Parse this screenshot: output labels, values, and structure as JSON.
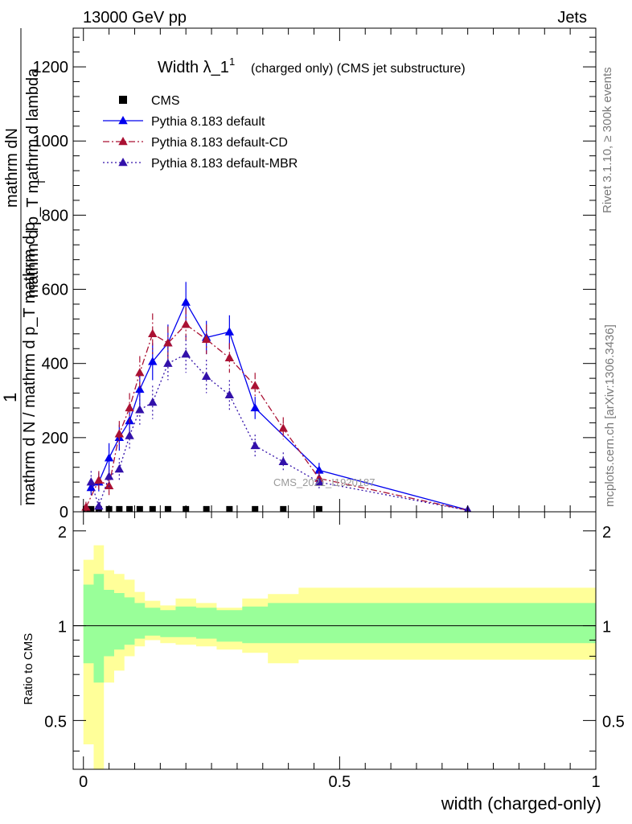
{
  "header": {
    "left": "13000 GeV pp",
    "right": "Jets"
  },
  "side_labels": {
    "rivet": "Rivet 3.1.10, ≥ 300k events",
    "mcplots": "mcplots.cern.ch [arXiv:1306.3436]"
  },
  "chart_data": [
    {
      "type": "line",
      "title": "Width λ_1",
      "title_sup": "1",
      "subtitle": "(charged only) (CMS jet substructure)",
      "ylabel_numerator": "1",
      "ylabel_line1": "mathrm dN",
      "ylabel_line2": "mathrm d p_T mathrm d lambda",
      "ylabel_sub_T": "T",
      "ylabel_denominator": "mathrm d N / mathrm d p_T mathrm d p",
      "watermark": "CMS_2021_I1920187",
      "xlim": [
        -0.02,
        1.0
      ],
      "ylim": [
        0,
        1300
      ],
      "yticks": [
        0,
        200,
        400,
        600,
        800,
        1000,
        1200
      ],
      "ytick_labels": [
        "0",
        "200",
        "400",
        "600",
        "800",
        "1000",
        "1200"
      ],
      "legend_position": "top-left",
      "series": [
        {
          "name": "CMS",
          "style": "markers",
          "color": "#000000",
          "x": [
            0.005,
            0.015,
            0.03,
            0.05,
            0.07,
            0.09,
            0.11,
            0.135,
            0.165,
            0.2,
            0.24,
            0.285,
            0.335,
            0.39,
            0.46
          ],
          "y": [
            0.3,
            0.3,
            0.3,
            0.3,
            0.3,
            0.3,
            0.3,
            0.3,
            0.3,
            0.3,
            0.3,
            0.3,
            0.3,
            0.3,
            0.3
          ],
          "err": [
            0,
            0,
            0,
            0,
            0,
            0,
            0,
            0,
            0,
            0,
            0,
            0,
            0,
            0,
            0
          ]
        },
        {
          "name": "Pythia 8.183 default",
          "style": "solid",
          "color": "#0000ee",
          "x": [
            0.015,
            0.03,
            0.05,
            0.07,
            0.09,
            0.11,
            0.135,
            0.165,
            0.2,
            0.24,
            0.285,
            0.335,
            0.46,
            0.75
          ],
          "y": [
            65,
            80,
            145,
            200,
            245,
            330,
            405,
            455,
            565,
            470,
            485,
            280,
            112,
            5
          ],
          "err": [
            20,
            25,
            40,
            35,
            40,
            45,
            50,
            50,
            55,
            45,
            45,
            30,
            20,
            3
          ]
        },
        {
          "name": "Pythia 8.183 default-CD",
          "style": "dashdot",
          "color": "#aa1133",
          "x": [
            0.005,
            0.03,
            0.05,
            0.07,
            0.09,
            0.11,
            0.135,
            0.165,
            0.2,
            0.24,
            0.285,
            0.335,
            0.39,
            0.46,
            0.75
          ],
          "y": [
            12,
            85,
            70,
            210,
            280,
            375,
            480,
            455,
            505,
            465,
            415,
            340,
            225,
            90,
            4
          ],
          "err": [
            15,
            25,
            25,
            35,
            40,
            45,
            55,
            45,
            45,
            40,
            40,
            35,
            30,
            20,
            3
          ]
        },
        {
          "name": "Pythia 8.183 default-MBR",
          "style": "dotted",
          "color": "#3311aa",
          "x": [
            0.015,
            0.03,
            0.05,
            0.07,
            0.09,
            0.11,
            0.135,
            0.165,
            0.2,
            0.24,
            0.285,
            0.335,
            0.39,
            0.46,
            0.75
          ],
          "y": [
            80,
            15,
            95,
            115,
            205,
            275,
            295,
            400,
            425,
            365,
            315,
            178,
            135,
            80,
            4
          ],
          "err": [
            30,
            20,
            30,
            30,
            35,
            40,
            45,
            45,
            50,
            45,
            40,
            30,
            25,
            20,
            3
          ]
        }
      ]
    },
    {
      "type": "area",
      "ylabel": "Ratio to CMS",
      "xlabel": "width (charged-only)",
      "xlim": [
        -0.02,
        1.0
      ],
      "ylim": [
        0.35,
        2.3
      ],
      "yscale": "log",
      "xticks": [
        0,
        0.5,
        1
      ],
      "xtick_labels": [
        "0",
        "0.5",
        "1"
      ],
      "yticks": [
        0.5,
        1,
        2
      ],
      "ytick_labels": [
        "0.5",
        "1",
        "2"
      ],
      "reference_line": 1,
      "bins": [
        0.0,
        0.02,
        0.04,
        0.06,
        0.08,
        0.1,
        0.12,
        0.15,
        0.18,
        0.22,
        0.26,
        0.31,
        0.36,
        0.42,
        1.0
      ],
      "yellow_band": {
        "color": "#ffff99",
        "upper": [
          1.62,
          1.8,
          1.5,
          1.46,
          1.4,
          1.28,
          1.2,
          1.16,
          1.22,
          1.18,
          1.14,
          1.22,
          1.26,
          1.32
        ],
        "lower": [
          0.42,
          0.35,
          0.66,
          0.72,
          0.8,
          0.86,
          0.9,
          0.88,
          0.87,
          0.86,
          0.84,
          0.82,
          0.76,
          0.78
        ]
      },
      "green_band": {
        "color": "#99ff99",
        "upper": [
          1.35,
          1.46,
          1.3,
          1.27,
          1.23,
          1.18,
          1.14,
          1.12,
          1.15,
          1.14,
          1.12,
          1.15,
          1.18,
          1.18
        ],
        "lower": [
          0.76,
          0.66,
          0.8,
          0.84,
          0.87,
          0.91,
          0.93,
          0.92,
          0.92,
          0.91,
          0.89,
          0.88,
          0.88,
          0.88
        ]
      }
    }
  ]
}
